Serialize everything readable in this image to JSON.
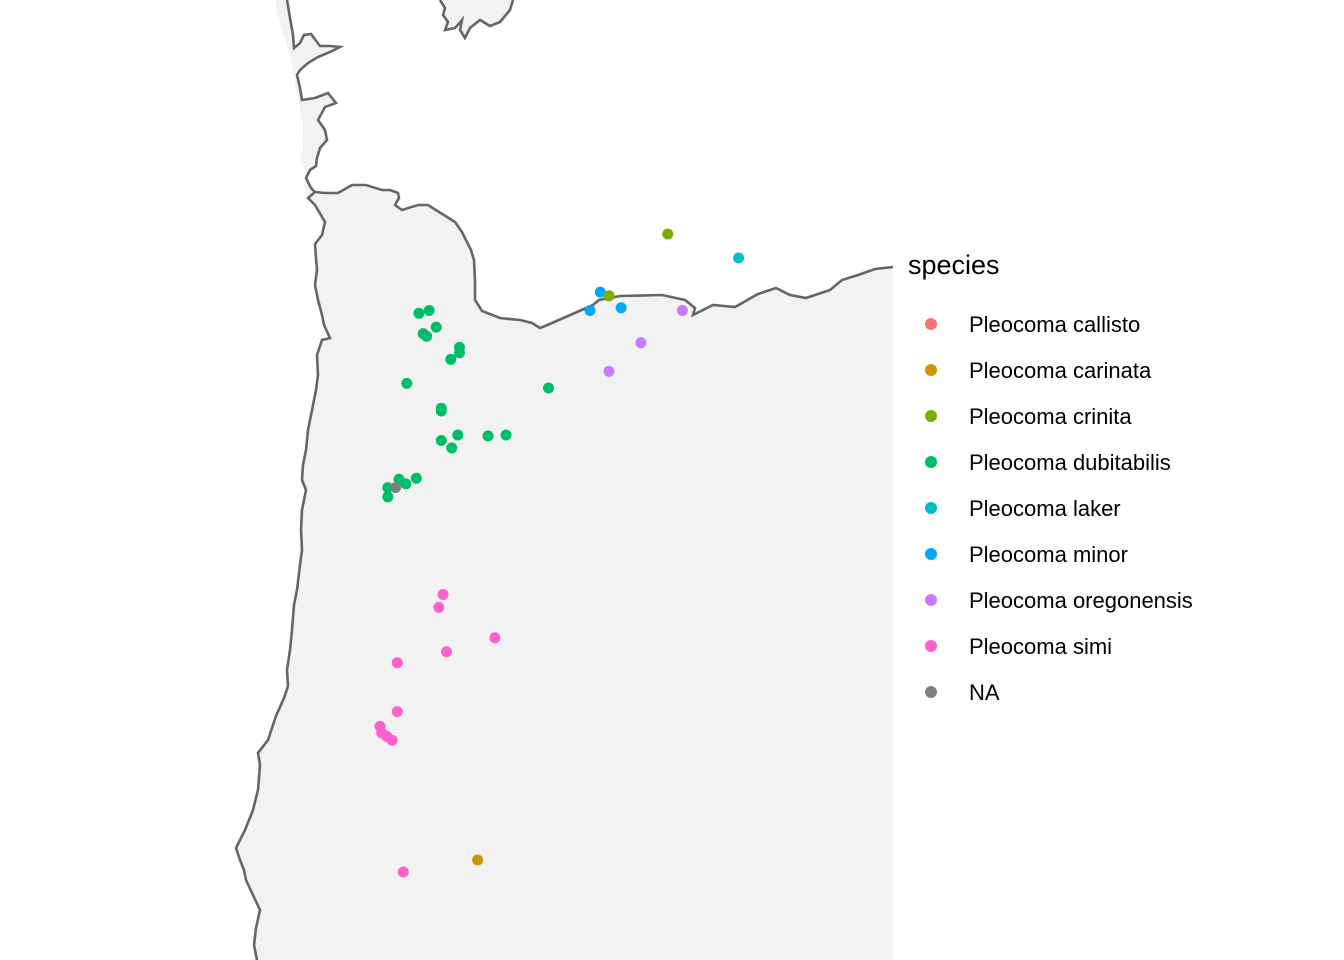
{
  "legend": {
    "title": "species",
    "items": [
      {
        "label": "Pleocoma callisto",
        "color": "#F8766D"
      },
      {
        "label": "Pleocoma carinata",
        "color": "#CD9600"
      },
      {
        "label": "Pleocoma crinita",
        "color": "#7CAE00"
      },
      {
        "label": "Pleocoma dubitabilis",
        "color": "#00BE67"
      },
      {
        "label": "Pleocoma laker",
        "color": "#00BFC4"
      },
      {
        "label": "Pleocoma minor",
        "color": "#00A9FF"
      },
      {
        "label": "Pleocoma oregonensis",
        "color": "#C77CFF"
      },
      {
        "label": "Pleocoma simi",
        "color": "#FF61CC"
      },
      {
        "label": "NA",
        "color": "#7F7F7F"
      }
    ]
  },
  "map": {
    "land_color": "#F2F2F2",
    "border_color": "#666666",
    "observations": [
      {
        "species": "Pleocoma crinita",
        "lon": -120.87,
        "lat": 46.18
      },
      {
        "species": "Pleocoma laker",
        "lon": -120.05,
        "lat": 45.92
      },
      {
        "species": "Pleocoma minor",
        "lon": -121.65,
        "lat": 45.55
      },
      {
        "species": "Pleocoma crinita",
        "lon": -121.55,
        "lat": 45.51
      },
      {
        "species": "Pleocoma minor",
        "lon": -121.41,
        "lat": 45.38
      },
      {
        "species": "Pleocoma minor",
        "lon": -121.77,
        "lat": 45.35
      },
      {
        "species": "Pleocoma oregonensis",
        "lon": -120.7,
        "lat": 45.35
      },
      {
        "species": "Pleocoma oregonensis",
        "lon": -121.18,
        "lat": 45.0
      },
      {
        "species": "Pleocoma oregonensis",
        "lon": -121.55,
        "lat": 44.69
      },
      {
        "species": "Pleocoma dubitabilis",
        "lon": -123.63,
        "lat": 45.35
      },
      {
        "species": "Pleocoma dubitabilis",
        "lon": -123.75,
        "lat": 45.32
      },
      {
        "species": "Pleocoma dubitabilis",
        "lon": -123.55,
        "lat": 45.17
      },
      {
        "species": "Pleocoma dubitabilis",
        "lon": -123.7,
        "lat": 45.1
      },
      {
        "species": "Pleocoma dubitabilis",
        "lon": -123.66,
        "lat": 45.07
      },
      {
        "species": "Pleocoma dubitabilis",
        "lon": -123.28,
        "lat": 44.95
      },
      {
        "species": "Pleocoma dubitabilis",
        "lon": -123.28,
        "lat": 44.89
      },
      {
        "species": "Pleocoma dubitabilis",
        "lon": -123.38,
        "lat": 44.82
      },
      {
        "species": "Pleocoma dubitabilis",
        "lon": -123.89,
        "lat": 44.56
      },
      {
        "species": "Pleocoma dubitabilis",
        "lon": -122.25,
        "lat": 44.51
      },
      {
        "species": "Pleocoma dubitabilis",
        "lon": -123.49,
        "lat": 44.29
      },
      {
        "species": "Pleocoma dubitabilis",
        "lon": -123.49,
        "lat": 44.26
      },
      {
        "species": "Pleocoma dubitabilis",
        "lon": -123.3,
        "lat": 44.0
      },
      {
        "species": "Pleocoma dubitabilis",
        "lon": -123.49,
        "lat": 43.94
      },
      {
        "species": "Pleocoma dubitabilis",
        "lon": -123.37,
        "lat": 43.86
      },
      {
        "species": "Pleocoma dubitabilis",
        "lon": -122.95,
        "lat": 43.99
      },
      {
        "species": "Pleocoma dubitabilis",
        "lon": -122.74,
        "lat": 44.0
      },
      {
        "species": "Pleocoma dubitabilis",
        "lon": -123.98,
        "lat": 43.52
      },
      {
        "species": "Pleocoma dubitabilis",
        "lon": -123.78,
        "lat": 43.53
      },
      {
        "species": "Pleocoma dubitabilis",
        "lon": -123.9,
        "lat": 43.47
      },
      {
        "species": "Pleocoma dubitabilis",
        "lon": -124.11,
        "lat": 43.43
      },
      {
        "species": "Pleocoma dubitabilis",
        "lon": -124.11,
        "lat": 43.33
      },
      {
        "species": "NA",
        "lon": -124.02,
        "lat": 43.43
      },
      {
        "species": "Pleocoma simi",
        "lon": -123.47,
        "lat": 42.27
      },
      {
        "species": "Pleocoma simi",
        "lon": -123.52,
        "lat": 42.13
      },
      {
        "species": "Pleocoma simi",
        "lon": -122.87,
        "lat": 41.8
      },
      {
        "species": "Pleocoma simi",
        "lon": -123.43,
        "lat": 41.65
      },
      {
        "species": "Pleocoma simi",
        "lon": -124.0,
        "lat": 41.53
      },
      {
        "species": "Pleocoma simi",
        "lon": -124.0,
        "lat": 41.0
      },
      {
        "species": "Pleocoma simi",
        "lon": -124.2,
        "lat": 40.84
      },
      {
        "species": "Pleocoma simi",
        "lon": -124.18,
        "lat": 40.77
      },
      {
        "species": "Pleocoma simi",
        "lon": -124.12,
        "lat": 40.73
      },
      {
        "species": "Pleocoma simi",
        "lon": -124.06,
        "lat": 40.69
      },
      {
        "species": "Pleocoma simi",
        "lon": -123.93,
        "lat": 39.26
      },
      {
        "species": "Pleocoma carinata",
        "lon": -123.07,
        "lat": 39.39
      }
    ]
  }
}
